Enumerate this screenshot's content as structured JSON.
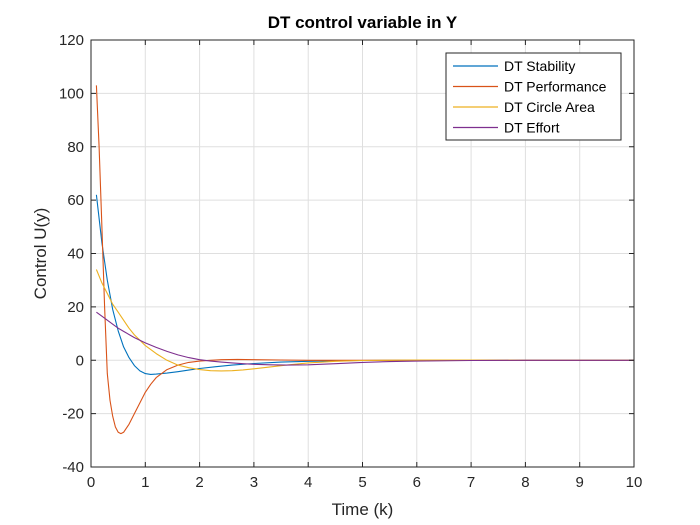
{
  "chart_data": {
    "type": "line",
    "title": "DT control variable in Y",
    "xlabel": "Time (k)",
    "ylabel": "Control U(y)",
    "xlim": [
      0,
      10
    ],
    "ylim": [
      -40,
      120
    ],
    "xticks": [
      0,
      1,
      2,
      3,
      4,
      5,
      6,
      7,
      8,
      9,
      10
    ],
    "yticks": [
      -40,
      -20,
      0,
      20,
      40,
      60,
      80,
      100,
      120
    ],
    "grid": true,
    "legend_position": "top-right",
    "series": [
      {
        "name": "DT Stability",
        "color": "#0072BD",
        "x": [
          0.1,
          0.2,
          0.3,
          0.4,
          0.5,
          0.6,
          0.7,
          0.8,
          0.9,
          1.0,
          1.1,
          1.2,
          1.4,
          1.6,
          1.8,
          2.0,
          2.3,
          2.6,
          3.0,
          3.5,
          4.0,
          4.5,
          5.0,
          6.0,
          7.0,
          8.0,
          9.0,
          10.0
        ],
        "y": [
          62,
          44,
          30,
          19,
          11,
          5,
          1,
          -2,
          -4,
          -5,
          -5.3,
          -5.2,
          -4.8,
          -4.3,
          -3.7,
          -3.1,
          -2.4,
          -1.8,
          -1.2,
          -0.7,
          -0.4,
          -0.2,
          -0.1,
          0,
          0,
          0,
          0,
          0
        ]
      },
      {
        "name": "DT Performance",
        "color": "#D95319",
        "x": [
          0.1,
          0.15,
          0.2,
          0.25,
          0.3,
          0.35,
          0.4,
          0.45,
          0.5,
          0.55,
          0.6,
          0.7,
          0.8,
          0.9,
          1.0,
          1.1,
          1.2,
          1.4,
          1.6,
          1.8,
          2.0,
          2.2,
          2.4,
          2.7,
          3.0,
          3.5,
          4.0,
          5.0,
          6.0,
          7.0,
          8.0,
          9.0,
          10.0
        ],
        "y": [
          103,
          80,
          50,
          20,
          -5,
          -15,
          -21,
          -25,
          -27,
          -27.5,
          -27,
          -24,
          -20,
          -16,
          -12,
          -9,
          -6.5,
          -3.5,
          -1.8,
          -0.8,
          -0.3,
          0,
          0.2,
          0.3,
          0.2,
          0.1,
          0,
          0,
          0,
          0,
          0,
          0,
          0
        ]
      },
      {
        "name": "DT Circle Area",
        "color": "#EDB120",
        "x": [
          0.1,
          0.2,
          0.3,
          0.4,
          0.5,
          0.6,
          0.7,
          0.8,
          0.9,
          1.0,
          1.2,
          1.4,
          1.6,
          1.8,
          2.0,
          2.2,
          2.4,
          2.6,
          2.8,
          3.0,
          3.3,
          3.6,
          4.0,
          4.5,
          5.0,
          6.0,
          7.0,
          8.0,
          9.0,
          10.0
        ],
        "y": [
          34,
          29,
          25,
          21,
          18,
          15,
          12,
          9.5,
          7.5,
          5.5,
          2.5,
          0,
          -1.8,
          -2.8,
          -3.5,
          -3.9,
          -4.0,
          -3.9,
          -3.6,
          -3.2,
          -2.5,
          -1.8,
          -1.0,
          -0.4,
          -0.1,
          0.1,
          0.1,
          0,
          0,
          0
        ]
      },
      {
        "name": "DT Effort",
        "color": "#7E2F8E",
        "x": [
          0.1,
          0.2,
          0.3,
          0.4,
          0.5,
          0.6,
          0.8,
          1.0,
          1.2,
          1.4,
          1.6,
          1.8,
          2.0,
          2.2,
          2.4,
          2.6,
          2.8,
          3.0,
          3.3,
          3.6,
          4.0,
          4.5,
          5.0,
          5.5,
          6.0,
          7.0,
          8.0,
          9.0,
          10.0
        ],
        "y": [
          18,
          16.5,
          15,
          13.5,
          12,
          10.8,
          8.5,
          6.5,
          4.8,
          3.3,
          2.0,
          1.0,
          0.2,
          -0.3,
          -0.7,
          -1.0,
          -1.3,
          -1.5,
          -1.7,
          -1.8,
          -1.7,
          -1.3,
          -0.8,
          -0.5,
          -0.3,
          -0.1,
          0,
          0,
          0
        ]
      }
    ]
  }
}
